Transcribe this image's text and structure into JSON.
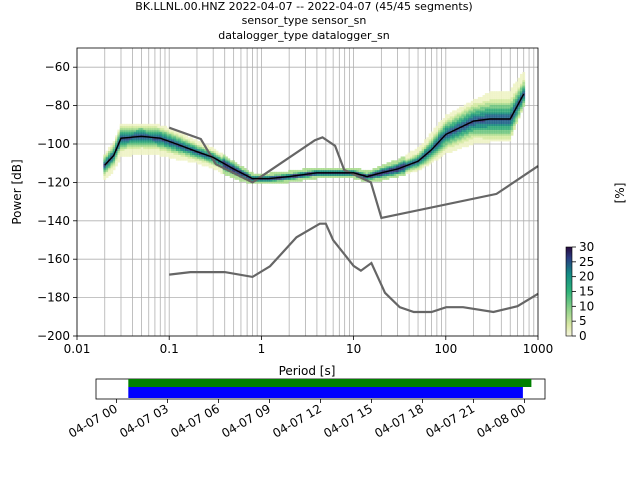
{
  "title": {
    "line1": "BK.LLNL.00.HNZ   2022-04-07 -- 2022-04-07  (45/45 segments)",
    "line2": "sensor_type  sensor_sn",
    "line3": "datalogger_type  datalogger_sn"
  },
  "colors": {
    "mode_line": "#000000",
    "noise_model": "#666666",
    "coverage_data": "#008000",
    "coverage_gaps": "#0000ff",
    "grid": "#b0b0b0"
  },
  "chart_data": [
    {
      "type": "heatmap",
      "xlabel": "Period [s]",
      "ylabel": "Power [dB]",
      "x_scale": "log",
      "xlim": [
        0.01,
        1000
      ],
      "ylim": [
        -200,
        -50
      ],
      "x_ticks": [
        0.01,
        0.1,
        1,
        10,
        100,
        1000
      ],
      "x_tick_labels": [
        "0.01",
        "0.1",
        "1",
        "10",
        "100",
        "1000"
      ],
      "y_ticks": [
        -200,
        -180,
        -160,
        -140,
        -120,
        -100,
        -80,
        -60
      ],
      "y_tick_labels": [
        "−200",
        "−180",
        "−160",
        "−140",
        "−120",
        "−100",
        "−80",
        "−60"
      ],
      "grid": true,
      "colorbar": {
        "label": "[%]",
        "range": [
          0,
          30
        ],
        "ticks": [
          0,
          5,
          10,
          15,
          20,
          25,
          30
        ],
        "tick_labels": [
          "0",
          "5",
          "10",
          "15",
          "20",
          "25",
          "30"
        ],
        "colormap": "pqlx"
      },
      "mode": {
        "period": [
          0.02,
          0.025,
          0.03,
          0.05,
          0.08,
          0.12,
          0.2,
          0.3,
          0.5,
          0.8,
          1.2,
          2,
          4,
          8,
          10,
          14,
          20,
          30,
          50,
          70,
          100,
          200,
          300,
          500,
          700
        ],
        "db": [
          -111,
          -106,
          -97,
          -96,
          -97,
          -100,
          -104,
          -107,
          -113,
          -118,
          -118,
          -117,
          -115,
          -115,
          -115,
          -117,
          -115,
          -113,
          -109,
          -103,
          -95,
          -88,
          -87,
          -87,
          -74
        ]
      },
      "noise_model_high": {
        "period": [
          0.1,
          0.22,
          0.32,
          0.8,
          3.8,
          4.6,
          6.3,
          7.9,
          15.4,
          20,
          354.8,
          1000
        ],
        "db": [
          -91.5,
          -97.4,
          -110.5,
          -120,
          -98,
          -96.5,
          -101,
          -113.5,
          -120,
          -138.5,
          -126,
          -111.5
        ]
      },
      "noise_model_low": {
        "period": [
          0.1,
          0.17,
          0.4,
          0.8,
          1.24,
          2.4,
          4.3,
          5,
          6,
          10,
          12,
          15.6,
          21.9,
          31.6,
          45,
          70,
          101,
          154,
          328,
          600,
          1000
        ],
        "db": [
          -168,
          -166.7,
          -166.7,
          -169.2,
          -163.7,
          -148.6,
          -141.5,
          -141.5,
          -150,
          -163.5,
          -166,
          -162,
          -177.5,
          -185,
          -187.5,
          -187.5,
          -185,
          -185,
          -187.5,
          -184.5,
          -178
        ]
      },
      "density_band": {
        "period": [
          0.02,
          0.025,
          0.03,
          0.05,
          0.08,
          0.12,
          0.2,
          0.3,
          0.5,
          0.8,
          1.2,
          2,
          4,
          8,
          10,
          14,
          20,
          30,
          50,
          70,
          100,
          200,
          300,
          500,
          700
        ],
        "db_low": [
          -118,
          -113,
          -106,
          -104,
          -105,
          -107,
          -109,
          -112,
          -117,
          -120,
          -120,
          -119,
          -117,
          -117,
          -117,
          -119,
          -118,
          -116,
          -113,
          -109,
          -104,
          -99,
          -98,
          -97,
          -80
        ],
        "db_high": [
          -106,
          -100,
          -91,
          -90,
          -91,
          -94,
          -99,
          -103,
          -110,
          -116,
          -116,
          -115,
          -113,
          -113,
          -113,
          -115,
          -112,
          -109,
          -103,
          -95,
          -86,
          -78,
          -74,
          -73,
          -63
        ]
      }
    },
    {
      "type": "bar",
      "title": "",
      "x_tick_labels": [
        "04-07 00",
        "04-07 03",
        "04-07 06",
        "04-07 09",
        "04-07 12",
        "04-07 15",
        "04-07 18",
        "04-07 21",
        "04-08 00"
      ],
      "x_ticks_hours": [
        0,
        3,
        6,
        9,
        12,
        15,
        18,
        21,
        24
      ],
      "xlim_hours": [
        -1.2,
        25.2
      ],
      "series": [
        {
          "start_hour": 0.7,
          "end_hour": 24.4
        },
        {
          "start_hour": 0.7,
          "end_hour": 23.9
        }
      ]
    }
  ]
}
